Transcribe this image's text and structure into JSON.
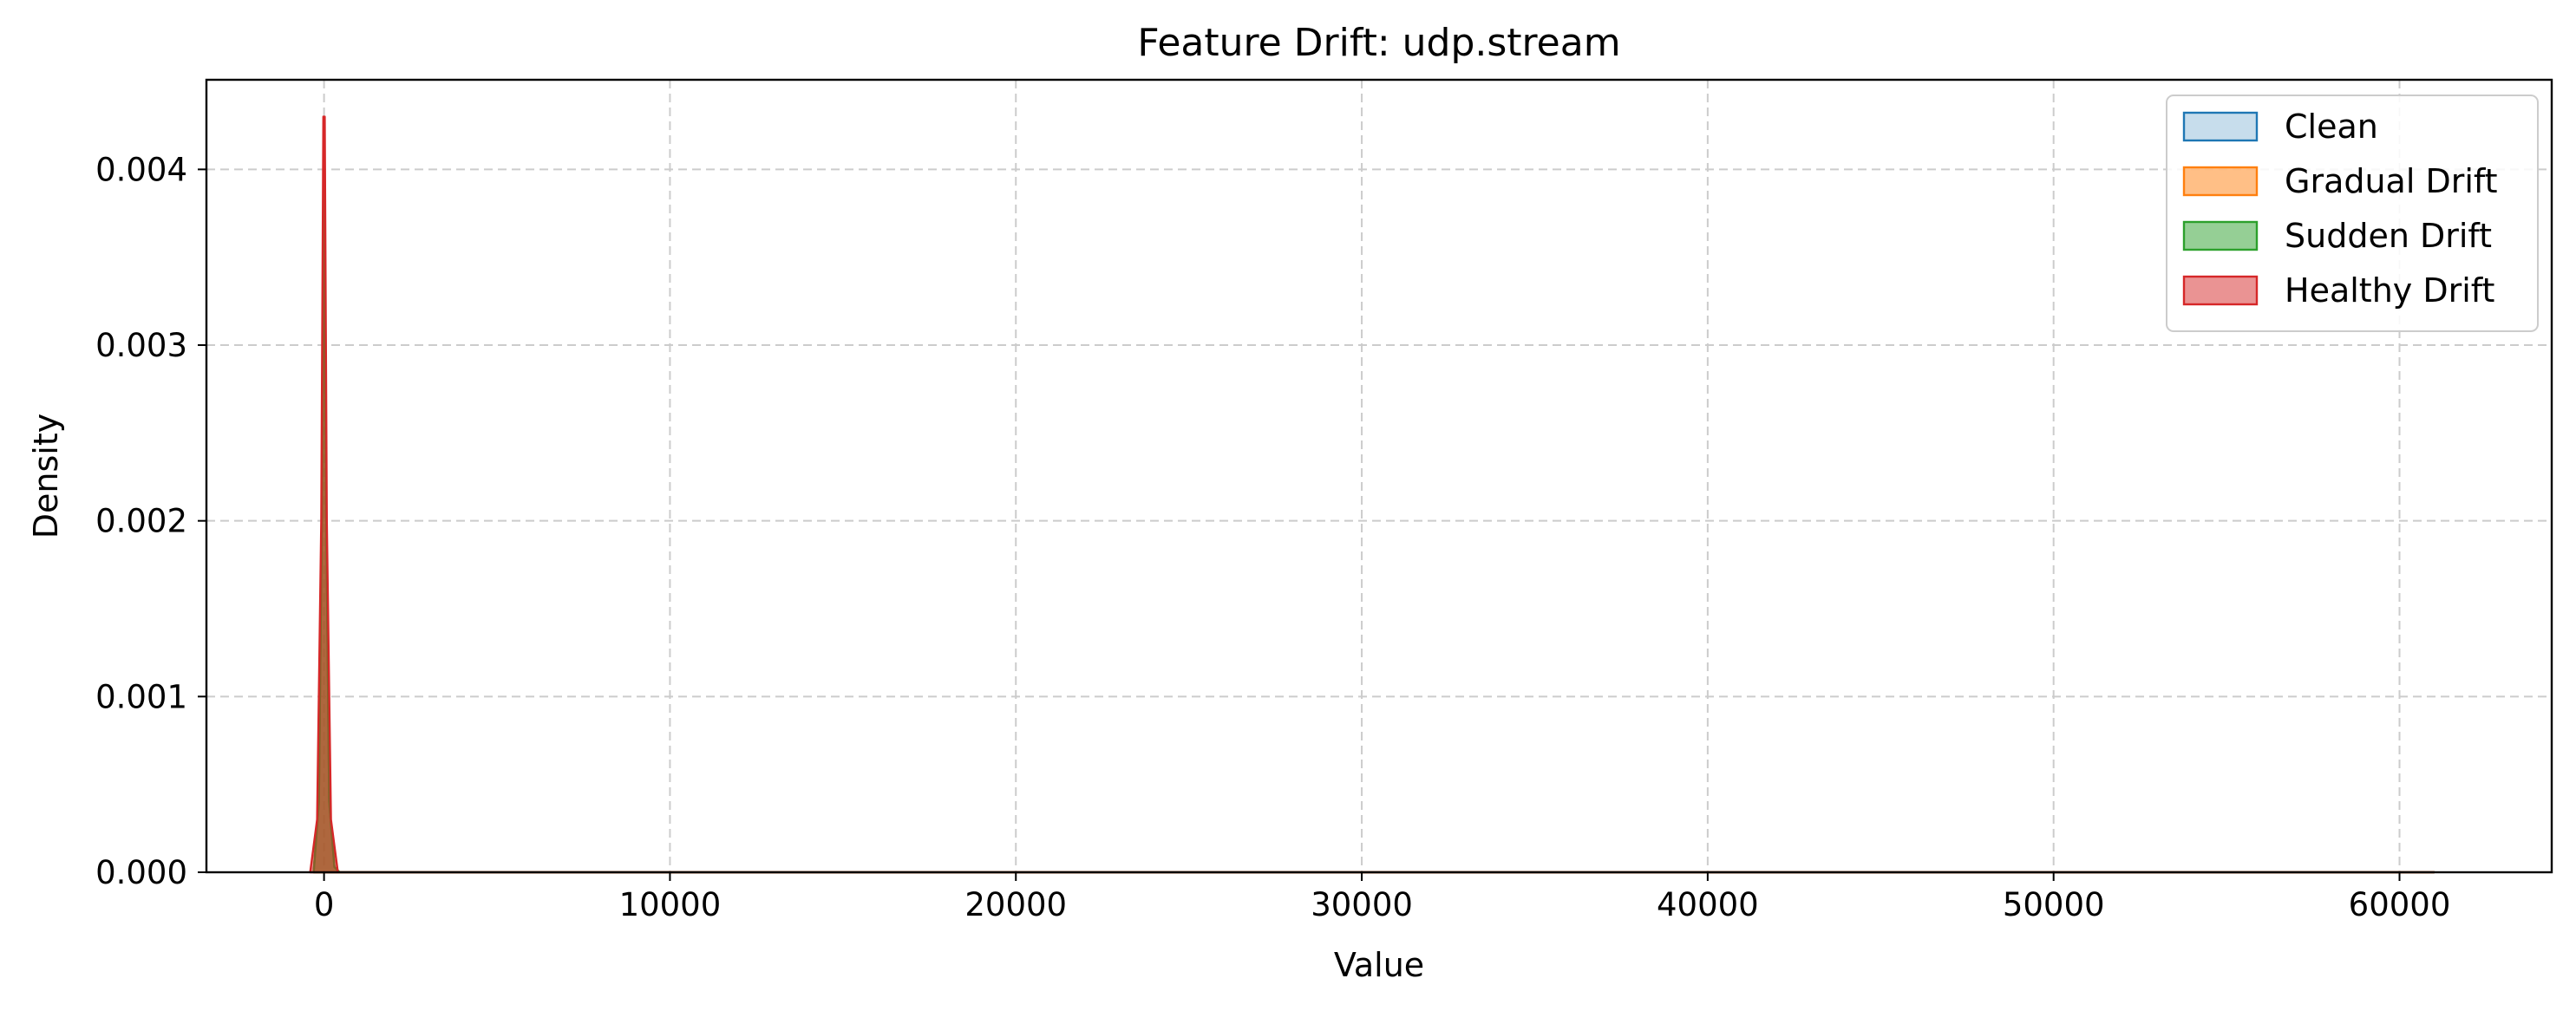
{
  "chart_data": {
    "type": "area",
    "title": "Feature Drift: udp.stream",
    "xlabel": "Value",
    "ylabel": "Density",
    "xlim": [
      -3400,
      64400
    ],
    "ylim": [
      0,
      0.00451
    ],
    "xticks": [
      0,
      10000,
      20000,
      30000,
      40000,
      50000,
      60000
    ],
    "xtick_labels": [
      "0",
      "10000",
      "20000",
      "30000",
      "40000",
      "50000",
      "60000"
    ],
    "yticks": [
      0,
      0.001,
      0.002,
      0.003,
      0.004
    ],
    "ytick_labels": [
      "0.000",
      "0.001",
      "0.002",
      "0.003",
      "0.004"
    ],
    "grid": true,
    "legend_position": "top-right",
    "series": [
      {
        "name": "Clean",
        "color": "#1f77b4",
        "fill_opacity": 0.25,
        "x": [
          -300,
          -150,
          -60,
          0,
          60,
          150,
          300,
          450,
          700,
          61000
        ],
        "y": [
          0,
          0.0004,
          0.0021,
          0.0039,
          0.0021,
          0.0004,
          3e-05,
          0,
          0,
          0
        ]
      },
      {
        "name": "Gradual Drift",
        "color": "#ff7f0e",
        "fill_opacity": 0.5,
        "x": [
          -300,
          -150,
          -60,
          0,
          60,
          150,
          300,
          450,
          700,
          61000
        ],
        "y": [
          0,
          0.0004,
          0.0021,
          0.0039,
          0.0021,
          0.0004,
          3e-05,
          0,
          0,
          0
        ]
      },
      {
        "name": "Sudden Drift",
        "color": "#2ca02c",
        "fill_opacity": 0.5,
        "x": [
          -300,
          -150,
          -60,
          0,
          60,
          150,
          300,
          450,
          700,
          61000
        ],
        "y": [
          0,
          0.0004,
          0.0021,
          0.0039,
          0.0021,
          0.0004,
          3e-05,
          0,
          0,
          0
        ]
      },
      {
        "name": "Healthy Drift",
        "color": "#d62728",
        "fill_opacity": 0.5,
        "x": [
          -400,
          -200,
          -80,
          -20,
          20,
          80,
          200,
          400,
          700,
          61000
        ],
        "y": [
          0,
          0.0003,
          0.002,
          0.0043,
          0.0043,
          0.002,
          0.0003,
          0,
          0,
          0
        ]
      }
    ]
  }
}
